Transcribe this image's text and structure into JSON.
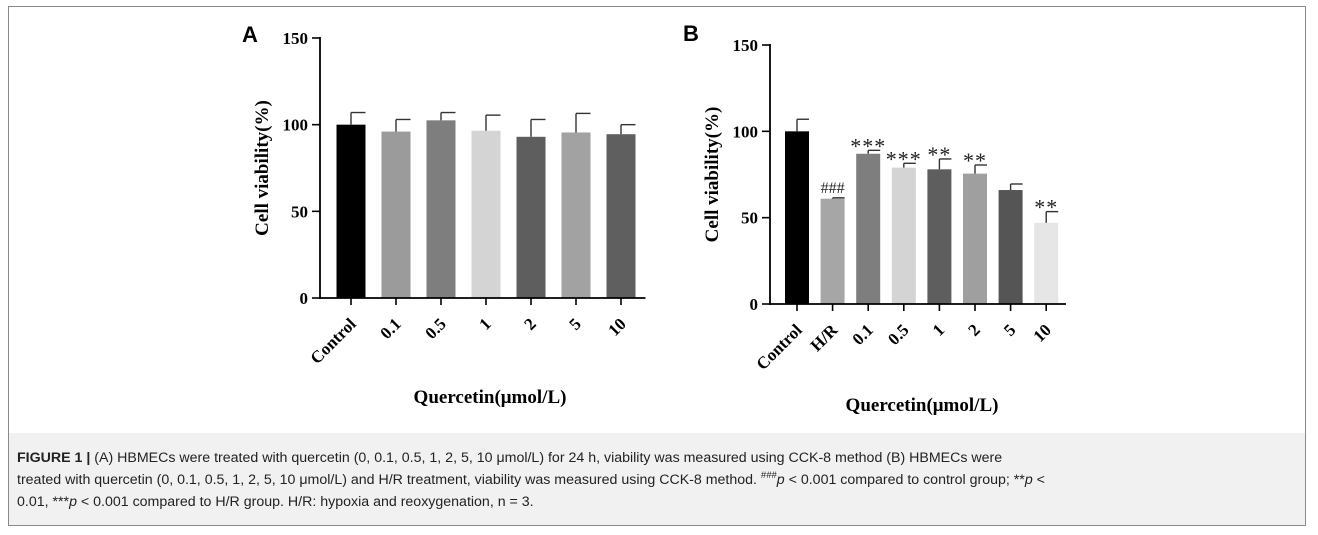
{
  "chart_data": [
    {
      "type": "bar",
      "panel_label": "A",
      "categories": [
        "Control",
        "0.1",
        "0.5",
        "1",
        "2",
        "5",
        "10"
      ],
      "values": [
        100,
        96,
        102.5,
        96.5,
        93,
        95.5,
        94.5
      ],
      "errors": [
        7,
        7,
        4.5,
        9,
        10,
        11,
        5.5
      ],
      "colors": [
        "#000000",
        "#9b9b9b",
        "#7e7e7e",
        "#d4d4d4",
        "#5e5e5e",
        "#a2a2a2",
        "#5f5f5f"
      ],
      "annotations": [
        "",
        "",
        "",
        "",
        "",
        "",
        ""
      ],
      "ylabel": "Cell viability(%)",
      "xlabel": "Quercetin(μmol/L)",
      "ylim": [
        0,
        150
      ],
      "yticks": [
        "0",
        "50",
        "100",
        "150"
      ],
      "grid": false
    },
    {
      "type": "bar",
      "panel_label": "B",
      "categories": [
        "Control",
        "H/R",
        "0.1",
        "0.5",
        "1",
        "2",
        "5",
        "10"
      ],
      "values": [
        100,
        61,
        87,
        79,
        78,
        75.5,
        66,
        47
      ],
      "errors": [
        7,
        0.5,
        2,
        2.5,
        6,
        5,
        3.5,
        6.5
      ],
      "colors": [
        "#000000",
        "#a6a6a6",
        "#7e7e7e",
        "#d4d4d4",
        "#5e5e5e",
        "#9f9f9f",
        "#555555",
        "#e6e6e6"
      ],
      "annotations": [
        "",
        "###",
        "***",
        "***",
        "**",
        "**",
        "",
        "**"
      ],
      "ylabel": "Cell viability(%)",
      "xlabel": "Quercetin(μmol/L)",
      "ylim": [
        0,
        150
      ],
      "yticks": [
        "0",
        "50",
        "100",
        "150"
      ],
      "grid": false
    }
  ],
  "caption": {
    "lead": "FIGURE 1 |",
    "line1": " (A) HBMECs were treated with quercetin (0, 0.1, 0.5, 1, 2, 5, 10 μmol/L) for 24 h, viability was measured using CCK-8 method (B) HBMECs were",
    "line2_a": "treated with quercetin (0, 0.1, 0.5, 1, 2, 5, 10 μmol/L) and H/R treatment, viability was measured using CCK-8 method. ",
    "sup_hash": "###",
    "p1": "p",
    "line2_b": " < 0.001 compared to control group; **",
    "p2": "p",
    "line2_c": " <",
    "line3_a": "0.01, ***",
    "p3": "p",
    "line3_b": " < 0.001 compared to H/R group. H/R: hypoxia and reoxygenation, n = 3."
  }
}
